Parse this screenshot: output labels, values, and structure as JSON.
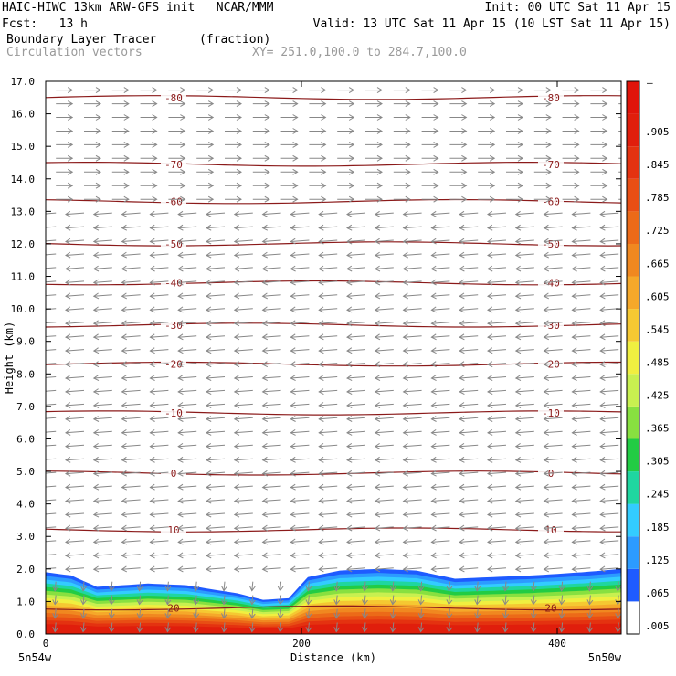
{
  "header": {
    "model": "HAIC-HIWC 13km ARW-GFS init   NCAR/MMM",
    "init": "Init: 00 UTC Sat 11 Apr 15",
    "fcst": "Fcst:   13 h",
    "valid": "Valid: 13 UTC Sat 11 Apr 15 (10 LST Sat 11 Apr 15)",
    "field": "Boundary Layer Tracer",
    "units": "(fraction)",
    "overlay": "Circulation vectors",
    "xy": "XY= 251.0,100.0 to 284.7,100.0"
  },
  "axes": {
    "left_corner": "5n54w",
    "right_corner": "5n50w"
  },
  "chart_data": {
    "type": "heatmap",
    "xlabel": "Distance (km)",
    "ylabel": "Height (km)",
    "xlim": [
      0,
      450
    ],
    "ylim": [
      0,
      17
    ],
    "x_ticks": [
      0,
      200,
      400
    ],
    "y_ticks": [
      "0.0",
      "1.0",
      "2.0",
      "3.0",
      "4.0",
      "5.0",
      "6.0",
      "7.0",
      "8.0",
      "9.0",
      "10.0",
      "11.0",
      "12.0",
      "13.0",
      "14.0",
      "15.0",
      "16.0",
      "17.0"
    ],
    "colorbar_labels": [
      ".905",
      ".845",
      ".785",
      ".725",
      ".665",
      ".605",
      ".545",
      ".485",
      ".425",
      ".365",
      ".305",
      ".245",
      ".185",
      ".125",
      ".065",
      ".005"
    ],
    "colorbar_top_label": "–",
    "colorbar_colors": [
      "#ffffff",
      "#1e5bff",
      "#2c9bff",
      "#33ccff",
      "#1fd6a0",
      "#22cc44",
      "#88e040",
      "#c8f050",
      "#f0ef40",
      "#f5c832",
      "#f5a82a",
      "#f08820",
      "#ec6a18",
      "#e84e14",
      "#e43210",
      "#e01e0c",
      "#e0140a"
    ],
    "field_range": [
      0.005,
      0.965
    ],
    "tracer_top_km": [
      [
        0,
        1.9
      ],
      [
        20,
        1.8
      ],
      [
        40,
        1.45
      ],
      [
        60,
        1.5
      ],
      [
        80,
        1.55
      ],
      [
        110,
        1.5
      ],
      [
        150,
        1.25
      ],
      [
        170,
        1.05
      ],
      [
        190,
        1.1
      ],
      [
        205,
        1.75
      ],
      [
        230,
        1.95
      ],
      [
        260,
        2.0
      ],
      [
        290,
        1.95
      ],
      [
        320,
        1.7
      ],
      [
        350,
        1.75
      ],
      [
        380,
        1.8
      ],
      [
        420,
        1.9
      ],
      [
        450,
        2.0
      ]
    ],
    "temperature_contours": [
      {
        "label": "-80",
        "height": 16.5
      },
      {
        "label": "-70",
        "height": 14.45
      },
      {
        "label": "-60",
        "height": 13.3
      },
      {
        "label": "-50",
        "height": 12.0
      },
      {
        "label": "-40",
        "height": 10.8
      },
      {
        "label": "-30",
        "height": 9.5
      },
      {
        "label": "-20",
        "height": 8.3
      },
      {
        "label": "-10",
        "height": 6.8
      },
      {
        "label": "0",
        "height": 4.95
      },
      {
        "label": "10",
        "height": 3.2
      },
      {
        "label": "20",
        "height": 0.8
      }
    ],
    "contour_label_x": [
      100,
      395
    ],
    "wind_direction_by_height": [
      {
        "from": 0,
        "to": 2,
        "dir": "down"
      },
      {
        "from": 2,
        "to": 13,
        "dir": "west"
      },
      {
        "from": 13,
        "to": 17,
        "dir": "east"
      }
    ]
  }
}
